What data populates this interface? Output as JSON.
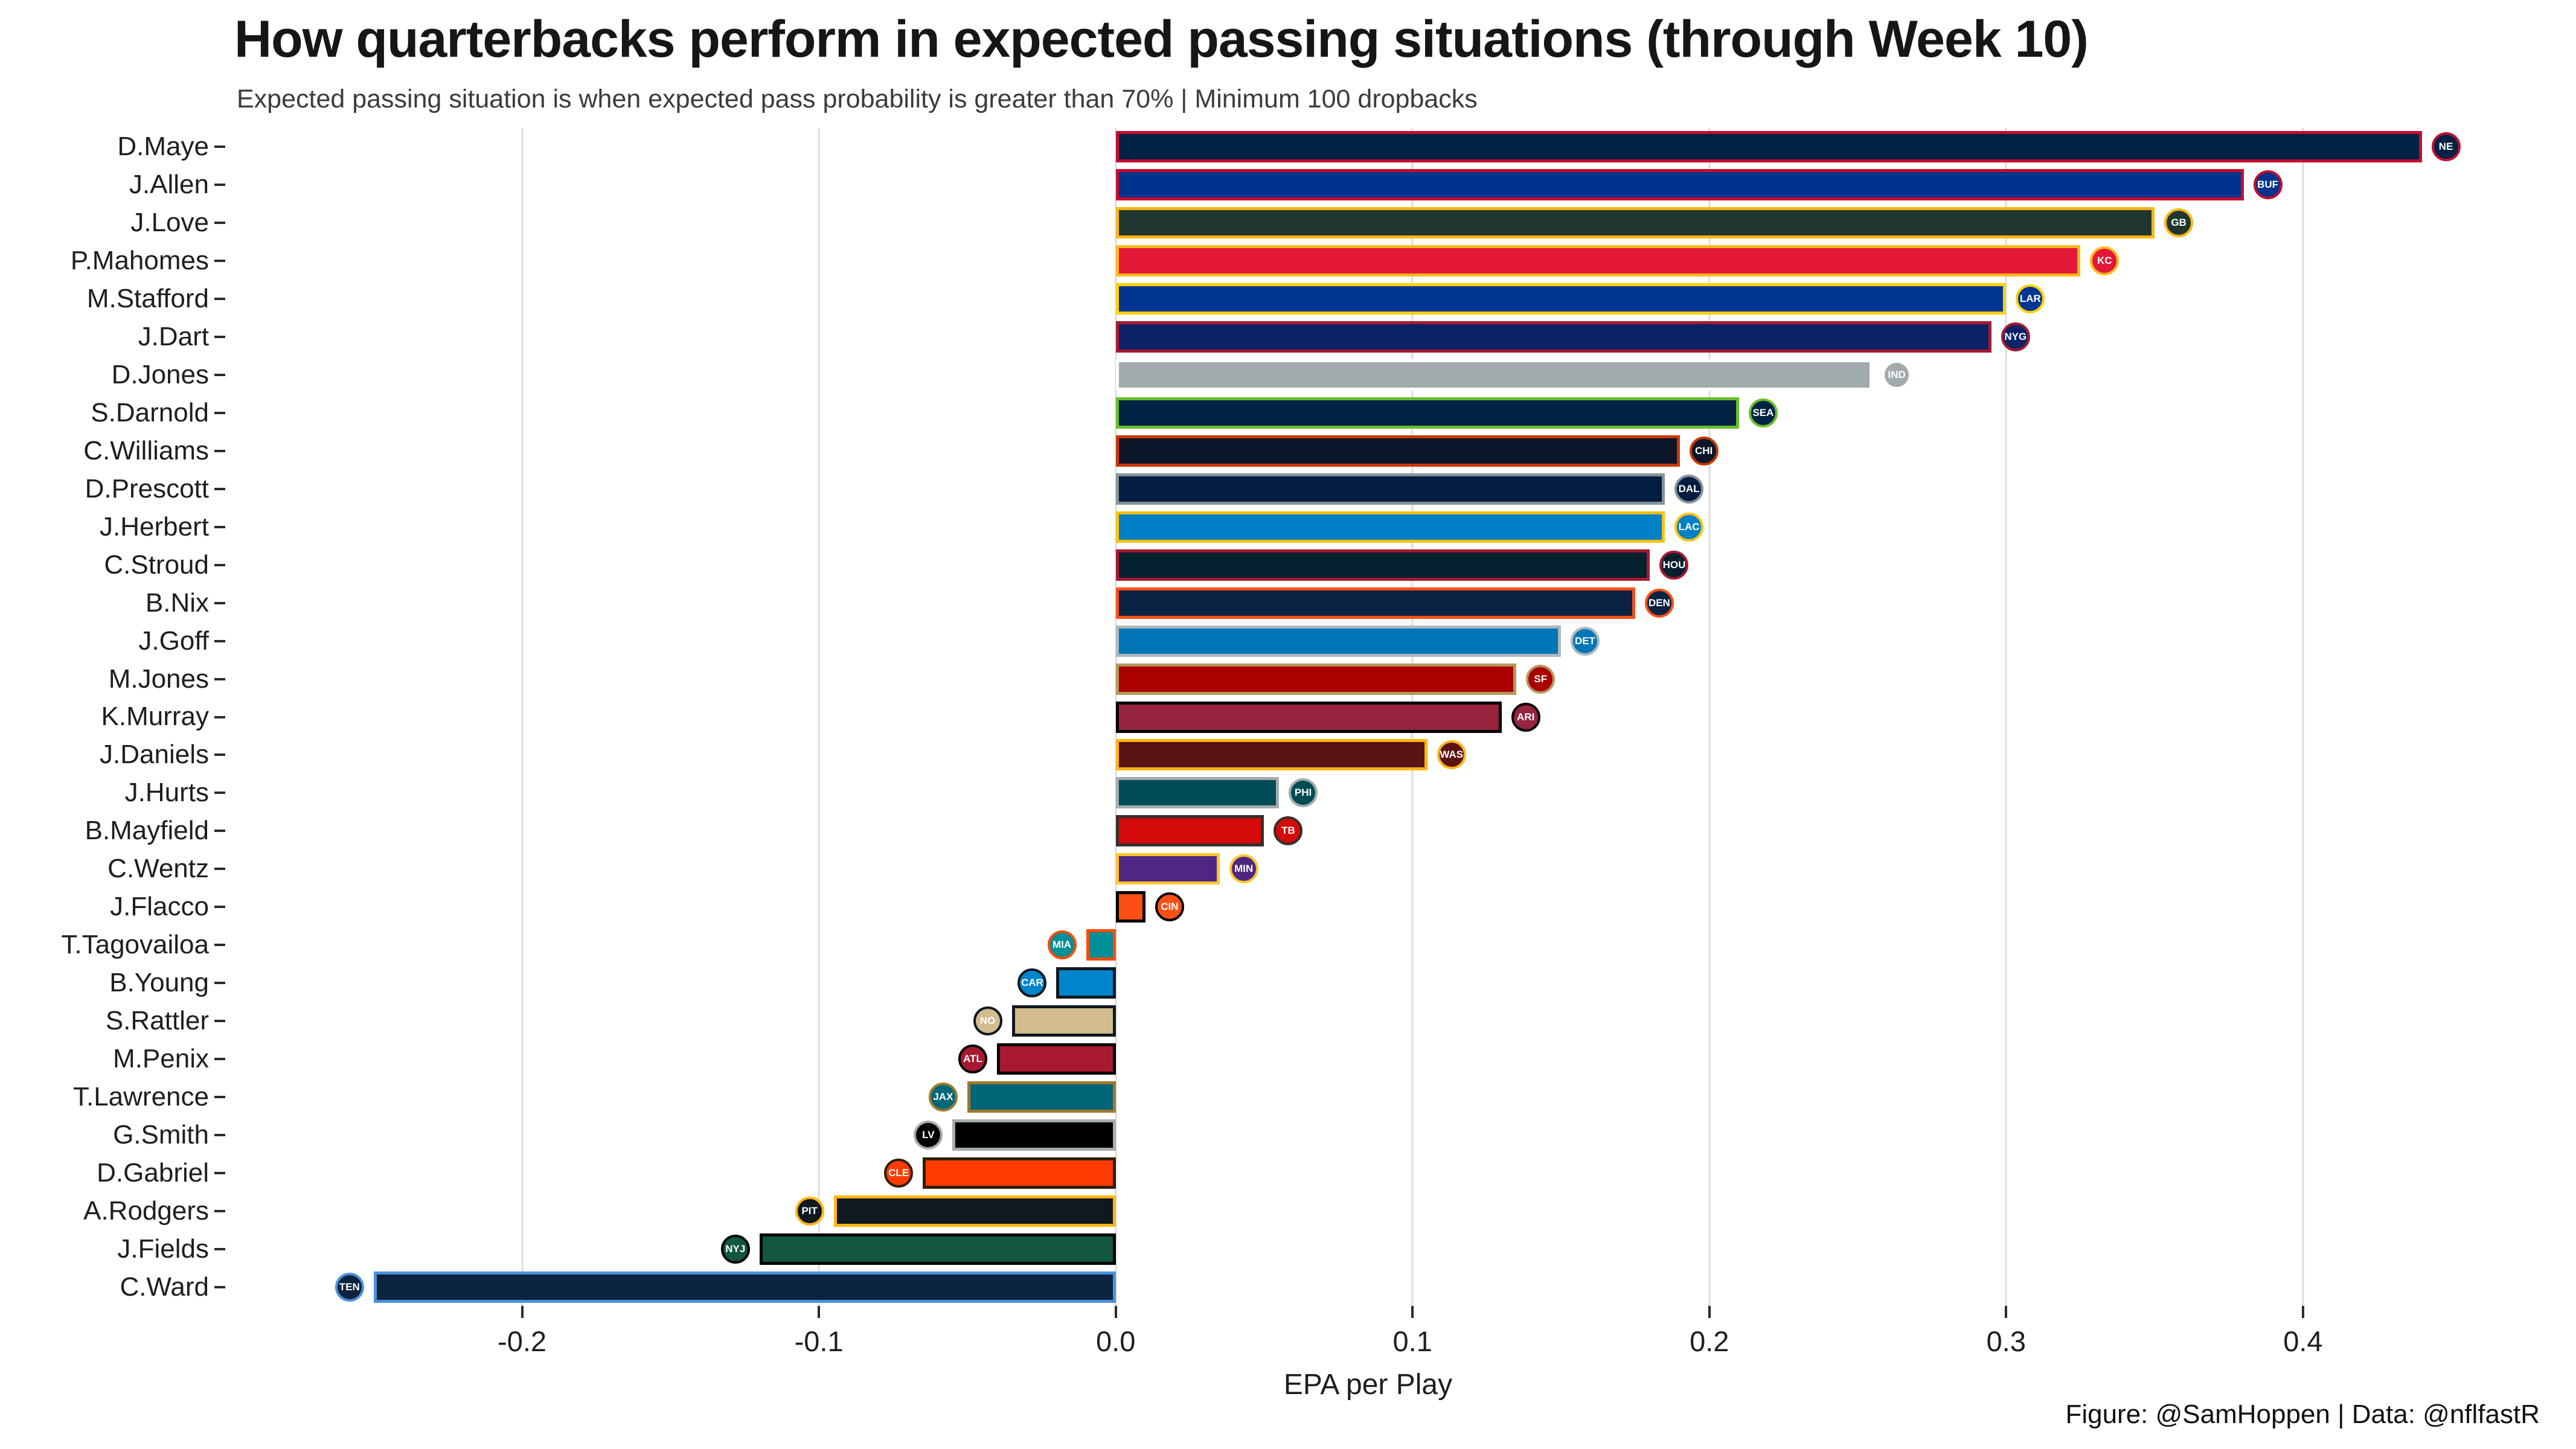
{
  "title": "How quarterbacks perform in expected passing situations (through Week 10)",
  "subtitle": "Expected passing situation is when expected pass probability is greater than 70% | Minimum 100 dropbacks",
  "xlabel": "EPA per Play",
  "caption": "Figure: @SamHoppen | Data: @nflfastR",
  "chart_data": {
    "type": "bar",
    "orientation": "horizontal",
    "title": "How quarterbacks perform in expected passing situations (through Week 10)",
    "subtitle": "Expected passing situation is when expected pass probability is greater than 70% | Minimum 100 dropbacks",
    "xlabel": "EPA per Play",
    "xlim": [
      -0.3,
      0.47
    ],
    "xticks": [
      -0.2,
      -0.1,
      0.0,
      0.1,
      0.2,
      0.3,
      0.4
    ],
    "xtick_labels": [
      "-0.2",
      "-0.1",
      "0.0",
      "0.1",
      "0.2",
      "0.3",
      "0.4"
    ],
    "grid": true,
    "gridline_color": "#dcdcdc",
    "bars": [
      {
        "player": "D.Maye",
        "team": "NE",
        "value": 0.44,
        "fill": "#002244",
        "stroke": "#C60C30"
      },
      {
        "player": "J.Allen",
        "team": "BUF",
        "value": 0.38,
        "fill": "#00338D",
        "stroke": "#C60C30"
      },
      {
        "player": "J.Love",
        "team": "GB",
        "value": 0.35,
        "fill": "#203731",
        "stroke": "#FFB612"
      },
      {
        "player": "P.Mahomes",
        "team": "KC",
        "value": 0.325,
        "fill": "#E31837",
        "stroke": "#FFB81C"
      },
      {
        "player": "M.Stafford",
        "team": "LAR",
        "value": 0.3,
        "fill": "#003594",
        "stroke": "#FFD100"
      },
      {
        "player": "J.Dart",
        "team": "NYG",
        "value": 0.295,
        "fill": "#0B2265",
        "stroke": "#A71930"
      },
      {
        "player": "D.Jones",
        "team": "IND",
        "value": 0.255,
        "fill": "#A2AAAD",
        "stroke": "#FFFFFF"
      },
      {
        "player": "S.Darnold",
        "team": "SEA",
        "value": 0.21,
        "fill": "#002244",
        "stroke": "#69BE28"
      },
      {
        "player": "C.Williams",
        "team": "CHI",
        "value": 0.19,
        "fill": "#0B162A",
        "stroke": "#C83803"
      },
      {
        "player": "D.Prescott",
        "team": "DAL",
        "value": 0.185,
        "fill": "#041E42",
        "stroke": "#869397"
      },
      {
        "player": "J.Herbert",
        "team": "LAC",
        "value": 0.185,
        "fill": "#0080C6",
        "stroke": "#FFC20E"
      },
      {
        "player": "C.Stroud",
        "team": "HOU",
        "value": 0.18,
        "fill": "#03202F",
        "stroke": "#A71930"
      },
      {
        "player": "B.Nix",
        "team": "DEN",
        "value": 0.175,
        "fill": "#0A2343",
        "stroke": "#FB4F14"
      },
      {
        "player": "J.Goff",
        "team": "DET",
        "value": 0.15,
        "fill": "#0076B6",
        "stroke": "#B0B7BC"
      },
      {
        "player": "M.Jones",
        "team": "SF",
        "value": 0.135,
        "fill": "#AA0000",
        "stroke": "#B3995D"
      },
      {
        "player": "K.Murray",
        "team": "ARI",
        "value": 0.13,
        "fill": "#97233F",
        "stroke": "#000000"
      },
      {
        "player": "J.Daniels",
        "team": "WAS",
        "value": 0.105,
        "fill": "#5A1414",
        "stroke": "#FFB612"
      },
      {
        "player": "J.Hurts",
        "team": "PHI",
        "value": 0.055,
        "fill": "#004C54",
        "stroke": "#A5ACAF"
      },
      {
        "player": "B.Mayfield",
        "team": "TB",
        "value": 0.05,
        "fill": "#D50A0A",
        "stroke": "#34302B"
      },
      {
        "player": "C.Wentz",
        "team": "MIN",
        "value": 0.035,
        "fill": "#4F2683",
        "stroke": "#FFC62F"
      },
      {
        "player": "J.Flacco",
        "team": "CIN",
        "value": 0.01,
        "fill": "#FB4F14",
        "stroke": "#000000"
      },
      {
        "player": "T.Tagovailoa",
        "team": "MIA",
        "value": -0.01,
        "fill": "#008E97",
        "stroke": "#FC4C02"
      },
      {
        "player": "B.Young",
        "team": "CAR",
        "value": -0.02,
        "fill": "#0085CA",
        "stroke": "#101820"
      },
      {
        "player": "S.Rattler",
        "team": "NO",
        "value": -0.035,
        "fill": "#D3BC8D",
        "stroke": "#101820"
      },
      {
        "player": "M.Penix",
        "team": "ATL",
        "value": -0.04,
        "fill": "#A71930",
        "stroke": "#000000"
      },
      {
        "player": "T.Lawrence",
        "team": "JAX",
        "value": -0.05,
        "fill": "#006778",
        "stroke": "#9F792C"
      },
      {
        "player": "G.Smith",
        "team": "LV",
        "value": -0.055,
        "fill": "#000000",
        "stroke": "#A5ACAF"
      },
      {
        "player": "D.Gabriel",
        "team": "CLE",
        "value": -0.065,
        "fill": "#FF3C00",
        "stroke": "#311D00"
      },
      {
        "player": "A.Rodgers",
        "team": "PIT",
        "value": -0.095,
        "fill": "#101820",
        "stroke": "#FFB612"
      },
      {
        "player": "J.Fields",
        "team": "NYJ",
        "value": -0.12,
        "fill": "#125740",
        "stroke": "#000000"
      },
      {
        "player": "C.Ward",
        "team": "TEN",
        "value": -0.25,
        "fill": "#0C2340",
        "stroke": "#4B92DB"
      }
    ]
  }
}
